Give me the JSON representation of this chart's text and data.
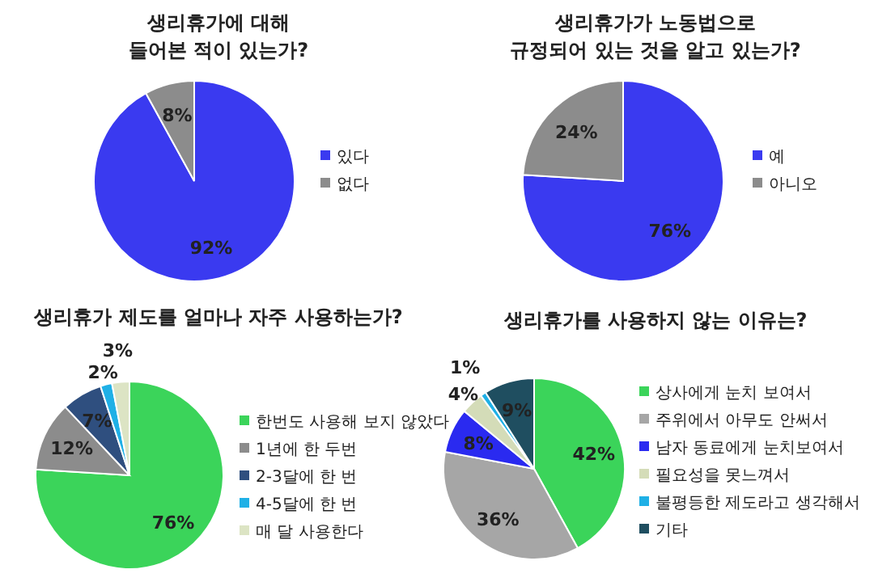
{
  "chart_data": [
    {
      "type": "pie",
      "title": "생리휴가에 대해\n들어본 적이 있는가?",
      "categories": [
        "있다",
        "없다"
      ],
      "values": [
        92,
        8
      ],
      "colors": [
        "#3a3af0",
        "#8c8c8c"
      ],
      "value_labels": [
        "92%",
        "8%"
      ],
      "legend": "right"
    },
    {
      "type": "pie",
      "title": "생리휴가가 노동법으로\n규정되어 있는 것을 알고 있는가?",
      "categories": [
        "예",
        "아니오"
      ],
      "values": [
        76,
        24
      ],
      "colors": [
        "#3a3af0",
        "#8c8c8c"
      ],
      "value_labels": [
        "76%",
        "24%"
      ],
      "legend": "right"
    },
    {
      "type": "pie",
      "title": "생리휴가 제도를 얼마나 자주 사용하는가?",
      "categories": [
        "한번도 사용해 보지 않았다",
        "1년에 한 두번",
        "2-3달에 한 번",
        "4-5달에 한 번",
        "매 달 사용한다"
      ],
      "values": [
        76,
        12,
        7,
        2,
        3
      ],
      "colors": [
        "#3bd45a",
        "#8c8c8c",
        "#2f4f7f",
        "#1fb0e6",
        "#dce4c4"
      ],
      "value_labels": [
        "76%",
        "12%",
        "7%",
        "2%",
        "3%"
      ],
      "legend": "right"
    },
    {
      "type": "pie",
      "title": "생리휴가를 사용하지 않는 이유는?",
      "categories": [
        "상사에게 눈치 보여서",
        "주위에서 아무도 안써서",
        "남자 동료에게 눈치보여서",
        "필요성을 못느껴서",
        "불평등한 제도라고 생각해서",
        "기타"
      ],
      "values": [
        42,
        36,
        8,
        4,
        1,
        9
      ],
      "colors": [
        "#3bd45a",
        "#a6a6a6",
        "#2a2af0",
        "#d4dcb8",
        "#1fb0e6",
        "#1f4e60"
      ],
      "value_labels": [
        "42%",
        "36%",
        "8%",
        "4%",
        "1%",
        "9%"
      ],
      "legend": "right"
    }
  ]
}
